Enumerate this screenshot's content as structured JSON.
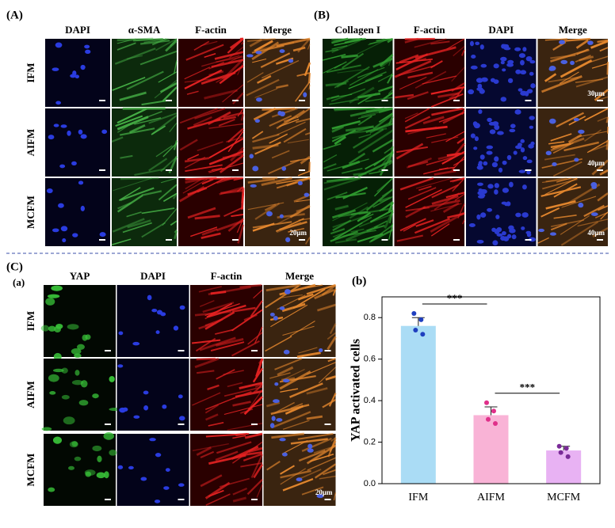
{
  "panel_a": {
    "label": "(A)",
    "columns": [
      "DAPI",
      "α-SMA",
      "F-actin",
      "Merge"
    ],
    "rows": [
      "IFM",
      "AIFM",
      "MCFM"
    ],
    "scale_bar": "20μm"
  },
  "panel_b": {
    "label": "(B)",
    "columns": [
      "Collagen I",
      "F-actin",
      "DAPI",
      "Merge"
    ],
    "scale_bars": [
      "30μm",
      "40μm",
      "40μm"
    ]
  },
  "panel_c": {
    "label": "(C)",
    "sublabel": "(a)",
    "columns": [
      "YAP",
      "DAPI",
      "F-actin",
      "Merge"
    ],
    "rows": [
      "IFM",
      "AIFM",
      "MCFM"
    ],
    "scale_bar": "20μm"
  },
  "chart_data": {
    "type": "bar",
    "label": "(b)",
    "y_label": "YAP activated cells",
    "categories": [
      "IFM",
      "AIFM",
      "MCFM"
    ],
    "values": [
      0.76,
      0.33,
      0.16
    ],
    "errors": [
      0.04,
      0.04,
      0.02
    ],
    "points": [
      [
        0.82,
        0.79,
        0.74,
        0.72
      ],
      [
        0.39,
        0.35,
        0.31,
        0.29
      ],
      [
        0.18,
        0.17,
        0.15,
        0.13
      ]
    ],
    "colors": [
      "#aadcf5",
      "#f9b3d6",
      "#e8b2f3"
    ],
    "point_colors": [
      "#1f3fbf",
      "#e0308a",
      "#7a2a98"
    ],
    "ylim": [
      0,
      0.9
    ],
    "yticks": [
      {
        "value": 0,
        "label": "0.0"
      },
      {
        "value": 0.2,
        "label": "0.2"
      },
      {
        "value": 0.4,
        "label": "0.4"
      },
      {
        "value": 0.6,
        "label": "0.6"
      },
      {
        "value": 0.8,
        "label": "0.8"
      }
    ],
    "annotations": [
      "***",
      "***"
    ]
  }
}
